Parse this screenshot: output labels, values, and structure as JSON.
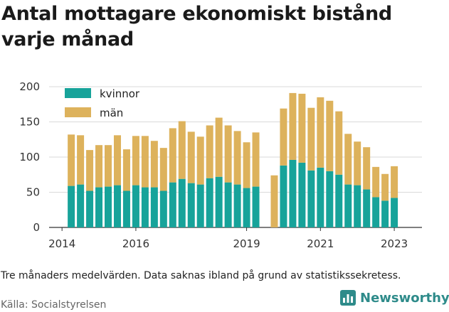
{
  "title": "Antal mottagare ekonomiskt bistånd varje månad",
  "note": "Tre månaders medelvärden. Data saknas ibland på grund av statistikssekretess.",
  "source": "Källa: Socialstyrelsen",
  "brand": {
    "name": "Newsworthy",
    "icon": "bar-chart-icon",
    "color": "#2e8b8a"
  },
  "chart_data": {
    "type": "bar",
    "stacked": true,
    "x_unit": "quarter",
    "x_ticks": [
      "2014",
      "2016",
      "2019",
      "2021",
      "2023"
    ],
    "y_ticks": [
      0,
      50,
      100,
      150,
      200
    ],
    "ylim": [
      0,
      200
    ],
    "grid": "horizontal",
    "legend_position": "top-left",
    "series": [
      {
        "name": "kvinnor",
        "color": "#17a39a"
      },
      {
        "name": "män",
        "color": "#ddb25c"
      }
    ],
    "points": [
      {
        "x": "2014.25",
        "kvinnor": 59,
        "man": 73
      },
      {
        "x": "2014.5",
        "kvinnor": 61,
        "man": 70
      },
      {
        "x": "2014.75",
        "kvinnor": 52,
        "man": 58
      },
      {
        "x": "2015.0",
        "kvinnor": 57,
        "man": 60
      },
      {
        "x": "2015.25",
        "kvinnor": 58,
        "man": 59
      },
      {
        "x": "2015.5",
        "kvinnor": 60,
        "man": 71
      },
      {
        "x": "2015.75",
        "kvinnor": 52,
        "man": 59
      },
      {
        "x": "2016.0",
        "kvinnor": 60,
        "man": 70
      },
      {
        "x": "2016.25",
        "kvinnor": 57,
        "man": 73
      },
      {
        "x": "2016.5",
        "kvinnor": 57,
        "man": 66
      },
      {
        "x": "2016.75",
        "kvinnor": 52,
        "man": 61
      },
      {
        "x": "2017.0",
        "kvinnor": 64,
        "man": 77
      },
      {
        "x": "2017.25",
        "kvinnor": 69,
        "man": 82
      },
      {
        "x": "2017.5",
        "kvinnor": 63,
        "man": 73
      },
      {
        "x": "2017.75",
        "kvinnor": 61,
        "man": 68
      },
      {
        "x": "2018.0",
        "kvinnor": 70,
        "man": 75
      },
      {
        "x": "2018.25",
        "kvinnor": 72,
        "man": 84
      },
      {
        "x": "2018.5",
        "kvinnor": 64,
        "man": 81
      },
      {
        "x": "2018.75",
        "kvinnor": 61,
        "man": 76
      },
      {
        "x": "2019.0",
        "kvinnor": 56,
        "man": 65
      },
      {
        "x": "2019.25",
        "kvinnor": 58,
        "man": 77
      },
      {
        "x": "2019.5",
        "kvinnor": null,
        "man": null
      },
      {
        "x": "2019.75",
        "kvinnor": 0,
        "man": 74
      },
      {
        "x": "2020.0",
        "kvinnor": 88,
        "man": 81
      },
      {
        "x": "2020.25",
        "kvinnor": 96,
        "man": 95
      },
      {
        "x": "2020.5",
        "kvinnor": 92,
        "man": 98
      },
      {
        "x": "2020.75",
        "kvinnor": 81,
        "man": 89
      },
      {
        "x": "2021.0",
        "kvinnor": 85,
        "man": 100
      },
      {
        "x": "2021.25",
        "kvinnor": 80,
        "man": 100
      },
      {
        "x": "2021.5",
        "kvinnor": 75,
        "man": 90
      },
      {
        "x": "2021.75",
        "kvinnor": 61,
        "man": 72
      },
      {
        "x": "2022.0",
        "kvinnor": 60,
        "man": 62
      },
      {
        "x": "2022.25",
        "kvinnor": 54,
        "man": 60
      },
      {
        "x": "2022.5",
        "kvinnor": 43,
        "man": 43
      },
      {
        "x": "2022.75",
        "kvinnor": 38,
        "man": 38
      },
      {
        "x": "2023.0",
        "kvinnor": 42,
        "man": 45
      }
    ]
  }
}
